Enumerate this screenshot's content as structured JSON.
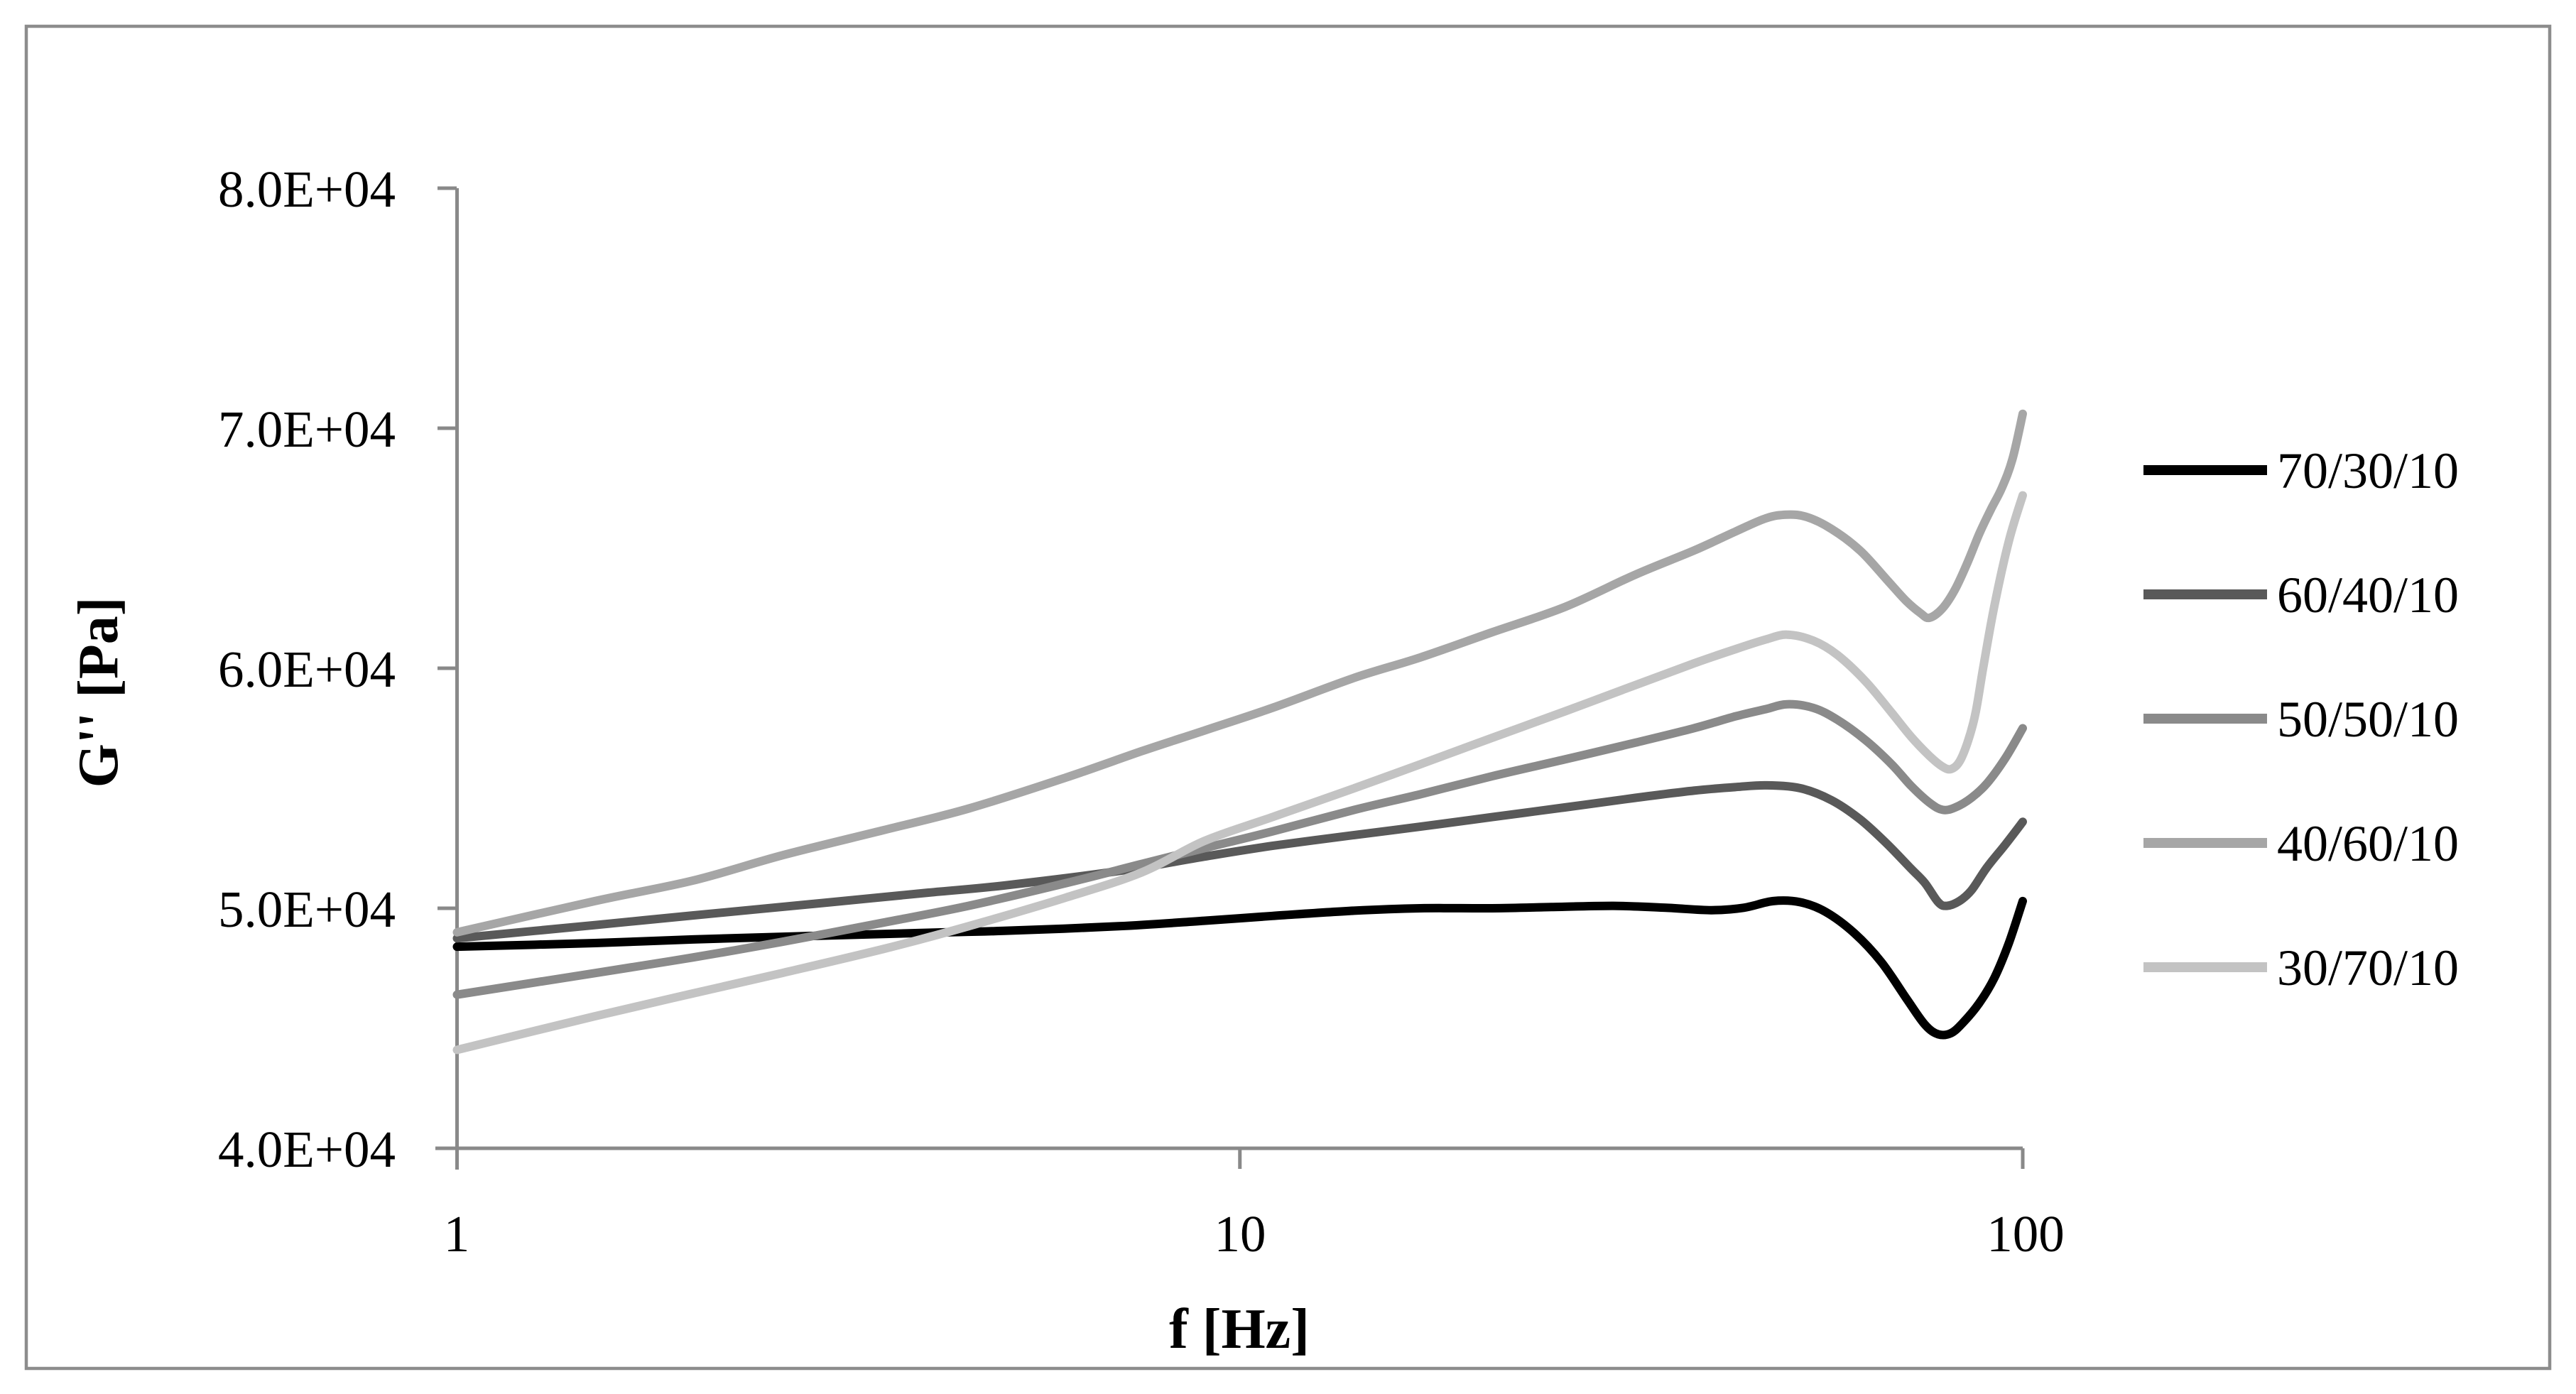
{
  "figure": {
    "background_color": "#ffffff",
    "border_color": "#8c8c8c",
    "axis_color": "#898989"
  },
  "chart_data": {
    "type": "line",
    "title": "",
    "xlabel": "f [Hz]",
    "ylabel": "G'' [Pa]",
    "x_scale": "log",
    "x_range": [
      1,
      100
    ],
    "y_range": [
      40000,
      80000
    ],
    "grid": false,
    "legend_position": "right",
    "x_ticks": [
      {
        "value": 1,
        "label": "1"
      },
      {
        "value": 10,
        "label": "10"
      },
      {
        "value": 100,
        "label": "100"
      }
    ],
    "y_ticks": [
      {
        "value": 80000,
        "label": "8.0E+04"
      },
      {
        "value": 70000,
        "label": "7.0E+04"
      },
      {
        "value": 60000,
        "label": "6.0E+04"
      },
      {
        "value": 50000,
        "label": "5.0E+04"
      },
      {
        "value": 40000,
        "label": "4.0E+04"
      }
    ],
    "series": [
      {
        "name": "70/30/10",
        "color": "#000000",
        "points": [
          [
            1,
            48400
          ],
          [
            1.5,
            48550
          ],
          [
            2,
            48700
          ],
          [
            3,
            48870
          ],
          [
            4,
            48980
          ],
          [
            5,
            49060
          ],
          [
            7,
            49250
          ],
          [
            9,
            49480
          ],
          [
            11,
            49680
          ],
          [
            14,
            49900
          ],
          [
            17,
            50000
          ],
          [
            21,
            50000
          ],
          [
            25,
            50050
          ],
          [
            30,
            50100
          ],
          [
            35,
            50020
          ],
          [
            40,
            49920
          ],
          [
            44,
            50020
          ],
          [
            48,
            50300
          ],
          [
            52,
            50250
          ],
          [
            56,
            49850
          ],
          [
            61,
            48950
          ],
          [
            66,
            47750
          ],
          [
            71,
            46250
          ],
          [
            75,
            45150
          ],
          [
            78,
            44750
          ],
          [
            81,
            44800
          ],
          [
            84,
            45250
          ],
          [
            88,
            46050
          ],
          [
            92,
            47100
          ],
          [
            96,
            48550
          ],
          [
            100,
            50300
          ]
        ]
      },
      {
        "name": "60/40/10",
        "color": "#595959",
        "points": [
          [
            1,
            48750
          ],
          [
            1.5,
            49300
          ],
          [
            2,
            49700
          ],
          [
            3,
            50250
          ],
          [
            4,
            50650
          ],
          [
            5,
            50950
          ],
          [
            7,
            51550
          ],
          [
            9,
            52150
          ],
          [
            11,
            52600
          ],
          [
            14,
            53050
          ],
          [
            17,
            53400
          ],
          [
            21,
            53800
          ],
          [
            26,
            54200
          ],
          [
            32,
            54600
          ],
          [
            38,
            54900
          ],
          [
            43,
            55050
          ],
          [
            47,
            55120
          ],
          [
            52,
            55000
          ],
          [
            57,
            54500
          ],
          [
            62,
            53700
          ],
          [
            67,
            52700
          ],
          [
            72,
            51650
          ],
          [
            75,
            51050
          ],
          [
            78,
            50250
          ],
          [
            80,
            50100
          ],
          [
            83,
            50300
          ],
          [
            86,
            50750
          ],
          [
            90,
            51700
          ],
          [
            95,
            52650
          ],
          [
            100,
            53600
          ]
        ]
      },
      {
        "name": "50/50/10",
        "color": "#8a8a8a",
        "points": [
          [
            1,
            46400
          ],
          [
            1.5,
            47300
          ],
          [
            2,
            47950
          ],
          [
            2.6,
            48600
          ],
          [
            3.5,
            49400
          ],
          [
            4.5,
            50100
          ],
          [
            6,
            51050
          ],
          [
            7.5,
            51850
          ],
          [
            9,
            52500
          ],
          [
            11,
            53200
          ],
          [
            14,
            54100
          ],
          [
            17,
            54750
          ],
          [
            21,
            55500
          ],
          [
            26,
            56200
          ],
          [
            32,
            56900
          ],
          [
            38,
            57500
          ],
          [
            43,
            58000
          ],
          [
            47,
            58300
          ],
          [
            50,
            58500
          ],
          [
            54,
            58350
          ],
          [
            58,
            57850
          ],
          [
            63,
            57000
          ],
          [
            68,
            56000
          ],
          [
            72,
            55100
          ],
          [
            76,
            54400
          ],
          [
            79,
            54100
          ],
          [
            82,
            54200
          ],
          [
            86,
            54600
          ],
          [
            90,
            55200
          ],
          [
            95,
            56250
          ],
          [
            100,
            57500
          ]
        ]
      },
      {
        "name": "40/60/10",
        "color": "#a6a6a6",
        "points": [
          [
            1,
            49000
          ],
          [
            1.5,
            50300
          ],
          [
            2,
            51150
          ],
          [
            2.6,
            52200
          ],
          [
            3.5,
            53250
          ],
          [
            4.5,
            54150
          ],
          [
            6,
            55450
          ],
          [
            7.5,
            56550
          ],
          [
            9,
            57400
          ],
          [
            11,
            58350
          ],
          [
            14,
            59600
          ],
          [
            17,
            60450
          ],
          [
            21,
            61500
          ],
          [
            26,
            62550
          ],
          [
            32,
            63900
          ],
          [
            38,
            64900
          ],
          [
            43,
            65700
          ],
          [
            47,
            66250
          ],
          [
            50,
            66400
          ],
          [
            53,
            66300
          ],
          [
            57,
            65800
          ],
          [
            62,
            64900
          ],
          [
            67,
            63700
          ],
          [
            71,
            62800
          ],
          [
            74,
            62300
          ],
          [
            76,
            62100
          ],
          [
            79,
            62500
          ],
          [
            82,
            63300
          ],
          [
            85,
            64400
          ],
          [
            88,
            65600
          ],
          [
            91,
            66600
          ],
          [
            94,
            67500
          ],
          [
            97,
            68700
          ],
          [
            100,
            70600
          ]
        ]
      },
      {
        "name": "30/70/10",
        "color": "#c3c3c3",
        "points": [
          [
            1,
            44100
          ],
          [
            1.5,
            45500
          ],
          [
            2,
            46450
          ],
          [
            2.6,
            47300
          ],
          [
            3.5,
            48300
          ],
          [
            4.5,
            49250
          ],
          [
            6,
            50450
          ],
          [
            7.5,
            51500
          ],
          [
            9,
            52800
          ],
          [
            11,
            53800
          ],
          [
            14,
            55000
          ],
          [
            17,
            56000
          ],
          [
            21,
            57100
          ],
          [
            26,
            58200
          ],
          [
            32,
            59300
          ],
          [
            38,
            60200
          ],
          [
            43,
            60800
          ],
          [
            47,
            61200
          ],
          [
            50,
            61400
          ],
          [
            54,
            61150
          ],
          [
            58,
            60550
          ],
          [
            63,
            59450
          ],
          [
            68,
            58150
          ],
          [
            72,
            57150
          ],
          [
            76,
            56350
          ],
          [
            79,
            55900
          ],
          [
            81,
            55800
          ],
          [
            83,
            56100
          ],
          [
            85,
            56900
          ],
          [
            87,
            58100
          ],
          [
            89,
            60000
          ],
          [
            92,
            62600
          ],
          [
            96,
            65300
          ],
          [
            100,
            67200
          ]
        ]
      }
    ]
  }
}
